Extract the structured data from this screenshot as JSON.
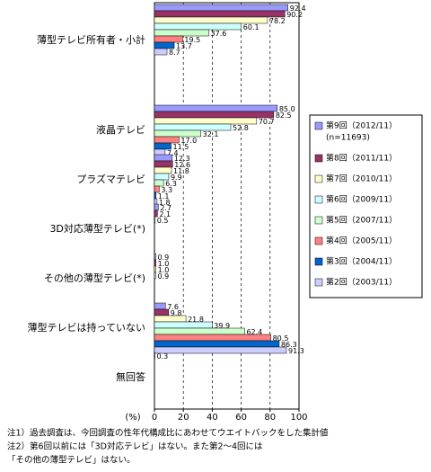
{
  "chart_data": {
    "type": "bar",
    "orientation": "horizontal",
    "x_label": "(%)",
    "categories": [
      "薄型テレビ所有者・小計",
      "液晶テレビ",
      "プラズマテレビ",
      "3D対応薄型テレビ(*)",
      "その他の薄型テレビ(*)",
      "薄型テレビは持っていない",
      "無回答"
    ],
    "xlim": [
      0,
      100
    ],
    "xticks": [
      0,
      20,
      40,
      60,
      80,
      100
    ],
    "grid": true,
    "legend_position": "right",
    "legend_note": "(n=11693)",
    "series": [
      {
        "name": "第9回（2012/11）",
        "color": "#9999ff",
        "values": [
          92.4,
          85.0,
          12.3,
          2.7,
          0.9,
          7.6,
          0.3
        ],
        "value_labels": [
          "92.4",
          "85.0",
          "12.3",
          "2.7",
          "0.9",
          "7.6",
          "0.3"
        ]
      },
      {
        "name": "第8回（2011/11）",
        "color": "#993366",
        "values": [
          90.2,
          82.5,
          12.6,
          2.1,
          1.0,
          9.8,
          null
        ],
        "value_labels": [
          "90.2",
          "82.5",
          "12.6",
          "2.1",
          "1.0",
          "9.8",
          null
        ]
      },
      {
        "name": "第7回（2010/11）",
        "color": "#ffffcc",
        "values": [
          78.2,
          70.7,
          11.8,
          0.5,
          1.0,
          21.8,
          null
        ],
        "value_labels": [
          "78.2",
          "70.7",
          "11.8",
          "0.5",
          "1.0",
          "21.8",
          null
        ]
      },
      {
        "name": "第6回（2009/11）",
        "color": "#ccffff",
        "values": [
          60.1,
          52.8,
          9.9,
          null,
          0.9,
          39.9,
          null
        ],
        "value_labels": [
          "60.1",
          "52.8",
          "9.9",
          null,
          "0.9",
          "39.9",
          null
        ]
      },
      {
        "name": "第5回（2007/11）",
        "color": "#ccffcc",
        "values": [
          37.6,
          32.1,
          6.3,
          null,
          null,
          62.4,
          null
        ],
        "value_labels": [
          "37.6",
          "32.1",
          "6.3",
          null,
          null,
          "62.4",
          null
        ]
      },
      {
        "name": "第4回（2005/11）",
        "color": "#ff8080",
        "values": [
          19.5,
          17.0,
          3.3,
          null,
          null,
          80.5,
          null
        ],
        "value_labels": [
          "19.5",
          "17.0",
          "3.3",
          null,
          null,
          "80.5",
          null
        ]
      },
      {
        "name": "第3回（2004/11）",
        "color": "#0066cc",
        "values": [
          13.7,
          11.5,
          1.1,
          null,
          null,
          86.3,
          null
        ],
        "value_labels": [
          "13.7",
          "11.5",
          "1.1",
          null,
          null,
          "86.3",
          null
        ]
      },
      {
        "name": "第2回（2003/11）",
        "color": "#ccccff",
        "values": [
          8.7,
          7.4,
          1.8,
          null,
          null,
          91.3,
          null
        ],
        "value_labels": [
          "8.7",
          "7.4",
          "1.8",
          null,
          null,
          "91.3",
          null
        ]
      }
    ],
    "notes": [
      "注1）過去調査は、今回調査の性年代構成比にあわせてウエイトバックをした集計値",
      "注2）第6回以前には「3D対応テレビ」はない。また第2～4回には",
      "「その他の薄型テレビ」はない。"
    ]
  }
}
